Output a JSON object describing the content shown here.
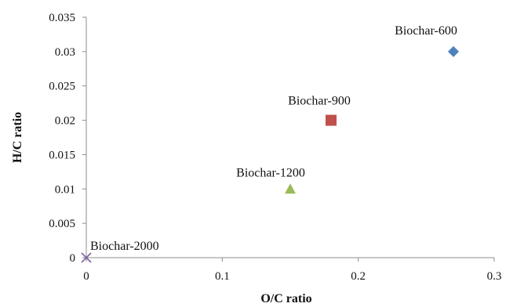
{
  "chart_data": {
    "type": "scatter",
    "title": "",
    "xlabel": "O/C ratio",
    "ylabel": "H/C ratio",
    "xlim": [
      0,
      0.3
    ],
    "ylim": [
      0,
      0.035
    ],
    "x_ticks": [
      "0",
      "0.1",
      "0.2",
      "0.3"
    ],
    "y_ticks": [
      "0",
      "0.005",
      "0.01",
      "0.015",
      "0.02",
      "0.025",
      "0.03",
      "0.035"
    ],
    "grid": false,
    "points": [
      {
        "label": "Biochar-600",
        "x": 0.27,
        "y": 0.03,
        "marker": "diamond",
        "color": "#4F81BD"
      },
      {
        "label": "Biochar-900",
        "x": 0.18,
        "y": 0.02,
        "marker": "square",
        "color": "#C0504D"
      },
      {
        "label": "Biochar-1200",
        "x": 0.15,
        "y": 0.01,
        "marker": "triangle",
        "color": "#9BBB59"
      },
      {
        "label": "Biochar-2000",
        "x": 0,
        "y": 0,
        "marker": "x",
        "color": "#8064A2"
      }
    ]
  }
}
